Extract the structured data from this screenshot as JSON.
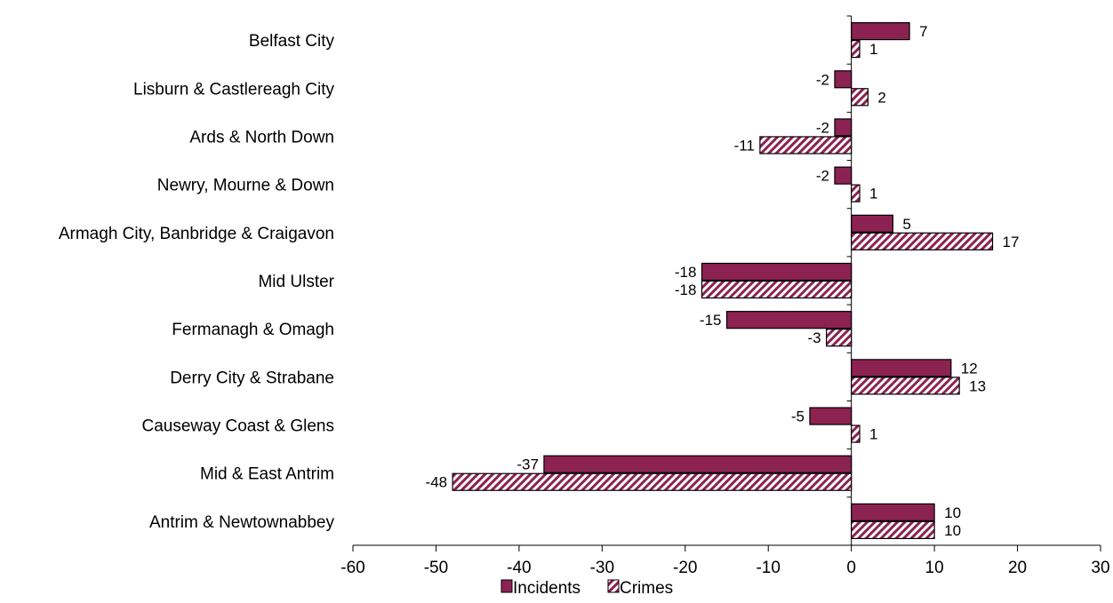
{
  "chart_data": {
    "type": "bar",
    "orientation": "horizontal",
    "categories": [
      "Belfast City",
      "Lisburn & Castlereagh City",
      "Ards & North Down",
      "Newry, Mourne & Down",
      "Armagh City, Banbridge & Craigavon",
      "Mid Ulster",
      "Fermanagh & Omagh",
      "Derry City & Strabane",
      "Causeway Coast & Glens",
      "Mid & East Antrim",
      "Antrim & Newtownabbey"
    ],
    "series": [
      {
        "name": "Incidents",
        "values": [
          7,
          -2,
          -2,
          -2,
          5,
          -18,
          -15,
          12,
          -5,
          -37,
          10
        ],
        "color": "#8B2252",
        "fill": "solid"
      },
      {
        "name": "Crimes",
        "values": [
          1,
          2,
          -11,
          1,
          17,
          -18,
          -3,
          13,
          1,
          -48,
          10
        ],
        "color": "#8B2252",
        "fill": "hatched"
      }
    ],
    "xlim": [
      -60,
      30
    ],
    "xticks": [
      -60,
      -50,
      -40,
      -30,
      -20,
      -10,
      0,
      10,
      20,
      30
    ],
    "grid": false,
    "legend_position": "bottom"
  }
}
